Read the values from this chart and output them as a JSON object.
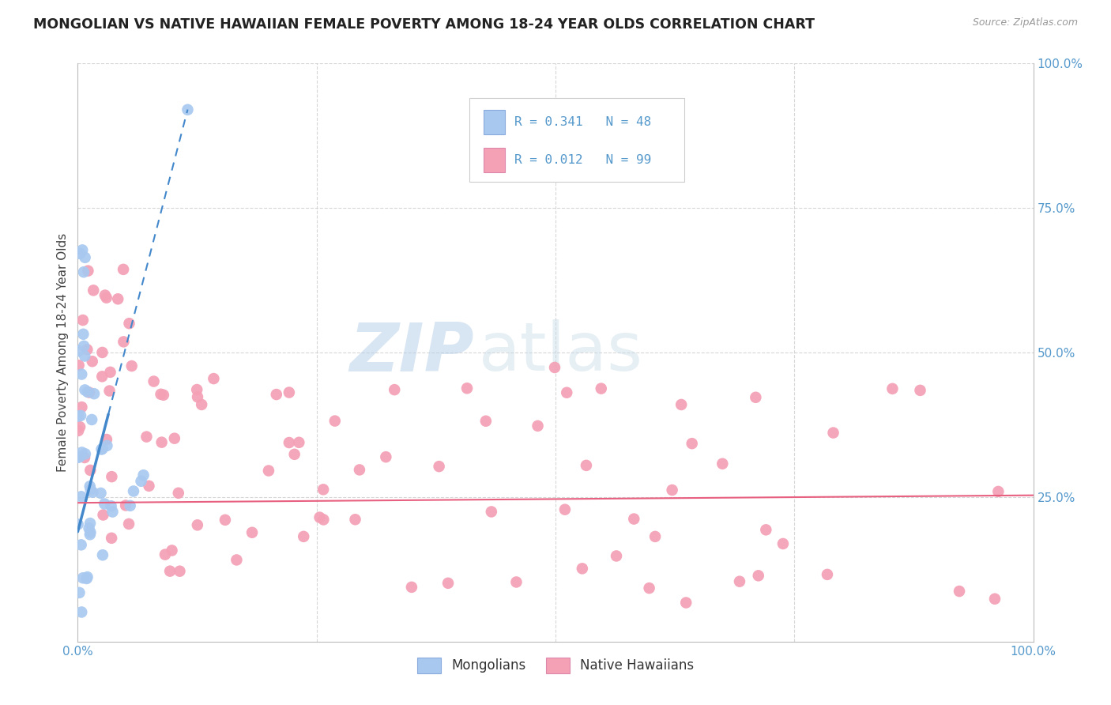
{
  "title": "MONGOLIAN VS NATIVE HAWAIIAN FEMALE POVERTY AMONG 18-24 YEAR OLDS CORRELATION CHART",
  "source": "Source: ZipAtlas.com",
  "ylabel": "Female Poverty Among 18-24 Year Olds",
  "xlim": [
    0,
    1.0
  ],
  "ylim": [
    0,
    1.0
  ],
  "mongolian_R": 0.341,
  "mongolian_N": 48,
  "hawaiian_R": 0.012,
  "hawaiian_N": 99,
  "mongolian_color": "#a8c8f0",
  "hawaiian_color": "#f4a0b5",
  "mongolian_line_color": "#4488cc",
  "hawaiian_line_color": "#e86080",
  "background_color": "#ffffff",
  "grid_color": "#cccccc",
  "tick_color": "#5599cc",
  "watermark_zip_color": "#c0d8ee",
  "watermark_atlas_color": "#c0d8ee"
}
